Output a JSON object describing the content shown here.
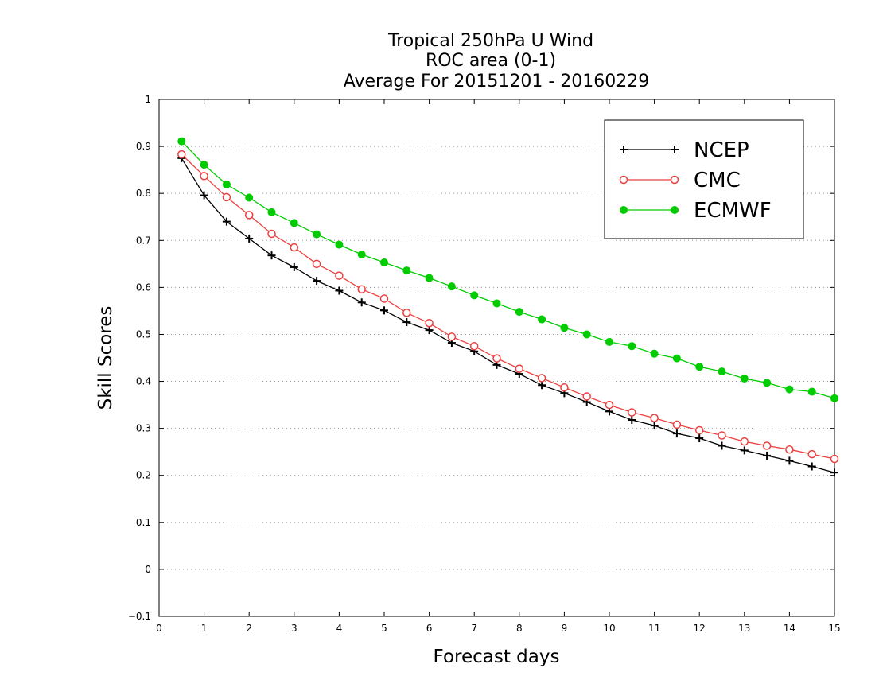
{
  "chart_data": {
    "type": "line",
    "title_lines": [
      "Tropical 250hPa U Wind",
      "ROC area (0-1)",
      "Average For 20151201 - 20160229"
    ],
    "xlabel": "Forecast days",
    "ylabel": "Skill Scores",
    "xlim": [
      0,
      15
    ],
    "ylim": [
      -0.1,
      1
    ],
    "xticks": [
      "0",
      "1",
      "2",
      "3",
      "4",
      "5",
      "6",
      "7",
      "8",
      "9",
      "10",
      "11",
      "12",
      "13",
      "14",
      "15"
    ],
    "yticks": [
      "−0.1",
      "0",
      "0.1",
      "0.2",
      "0.3",
      "0.4",
      "0.5",
      "0.6",
      "0.7",
      "0.8",
      "0.9",
      "1"
    ],
    "grid": true,
    "legend_position": "top-right",
    "x": [
      0.5,
      1,
      1.5,
      2,
      2.5,
      3,
      3.5,
      4,
      4.5,
      5,
      5.5,
      6,
      6.5,
      7,
      7.5,
      8,
      8.5,
      9,
      9.5,
      10,
      10.5,
      11,
      11.5,
      12,
      12.5,
      13,
      13.5,
      14,
      14.5,
      15
    ],
    "series": [
      {
        "name": "NCEP",
        "color": "#000000",
        "marker": "plus",
        "values": [
          0.875,
          0.796,
          0.74,
          0.704,
          0.668,
          0.643,
          0.614,
          0.593,
          0.568,
          0.551,
          0.526,
          0.509,
          0.482,
          0.464,
          0.435,
          0.416,
          0.392,
          0.375,
          0.356,
          0.336,
          0.318,
          0.306,
          0.289,
          0.279,
          0.263,
          0.253,
          0.242,
          0.231,
          0.219,
          0.206
        ]
      },
      {
        "name": "CMC",
        "color": "#ec4040",
        "marker": "open-circle",
        "values": [
          0.883,
          0.837,
          0.792,
          0.754,
          0.714,
          0.685,
          0.65,
          0.625,
          0.596,
          0.576,
          0.546,
          0.524,
          0.495,
          0.475,
          0.449,
          0.427,
          0.407,
          0.387,
          0.368,
          0.35,
          0.334,
          0.322,
          0.308,
          0.296,
          0.285,
          0.272,
          0.263,
          0.255,
          0.245,
          0.235
        ]
      },
      {
        "name": "ECMWF",
        "color": "#00cc00",
        "marker": "filled-circle",
        "values": [
          0.911,
          0.861,
          0.819,
          0.791,
          0.76,
          0.737,
          0.713,
          0.691,
          0.67,
          0.653,
          0.636,
          0.62,
          0.602,
          0.583,
          0.566,
          0.548,
          0.532,
          0.514,
          0.5,
          0.484,
          0.475,
          0.459,
          0.449,
          0.431,
          0.421,
          0.406,
          0.397,
          0.383,
          0.378,
          0.364
        ]
      }
    ]
  }
}
